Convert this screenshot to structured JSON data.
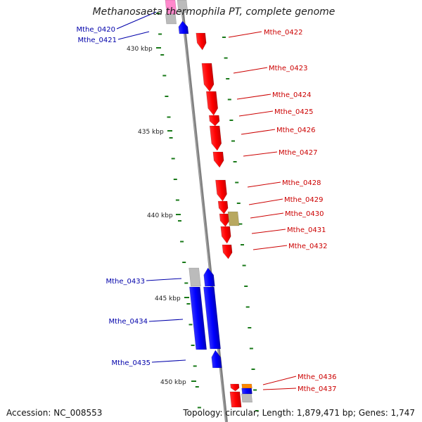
{
  "title": "Methanosaeta thermophila PT, complete genome",
  "accession": "Accession: NC_008553",
  "summary": "Topology: circular; Length: 1,879,471 bp; Genes: 1,747",
  "colors": {
    "forward": "#ff0000",
    "reverse": "#0000ff",
    "rna": "#b8a860",
    "pseudo": "#bbbbbb",
    "pink": "#ff88cc",
    "orange": "#ff8800",
    "backbone": "#808080",
    "tick": "#1a7a1a",
    "label_right": "#cc0000",
    "label_left": "#0000aa"
  },
  "scale": [
    {
      "label": "430 kbp"
    },
    {
      "label": "435 kbp"
    },
    {
      "label": "440 kbp"
    },
    {
      "label": "445 kbp"
    },
    {
      "label": "450 kbp"
    }
  ],
  "genes_right": [
    {
      "label": "Mthe_0422"
    },
    {
      "label": "Mthe_0423"
    },
    {
      "label": "Mthe_0424"
    },
    {
      "label": "Mthe_0425"
    },
    {
      "label": "Mthe_0426"
    },
    {
      "label": "Mthe_0427"
    },
    {
      "label": "Mthe_0428"
    },
    {
      "label": "Mthe_0429"
    },
    {
      "label": "Mthe_0430"
    },
    {
      "label": "Mthe_0431"
    },
    {
      "label": "Mthe_0432"
    },
    {
      "label": "Mthe_0436"
    },
    {
      "label": "Mthe_0437"
    }
  ],
  "genes_left": [
    {
      "label": "Mthe_0420"
    },
    {
      "label": "Mthe_0421"
    },
    {
      "label": "Mthe_0433"
    },
    {
      "label": "Mthe_0434"
    },
    {
      "label": "Mthe_0435"
    }
  ]
}
